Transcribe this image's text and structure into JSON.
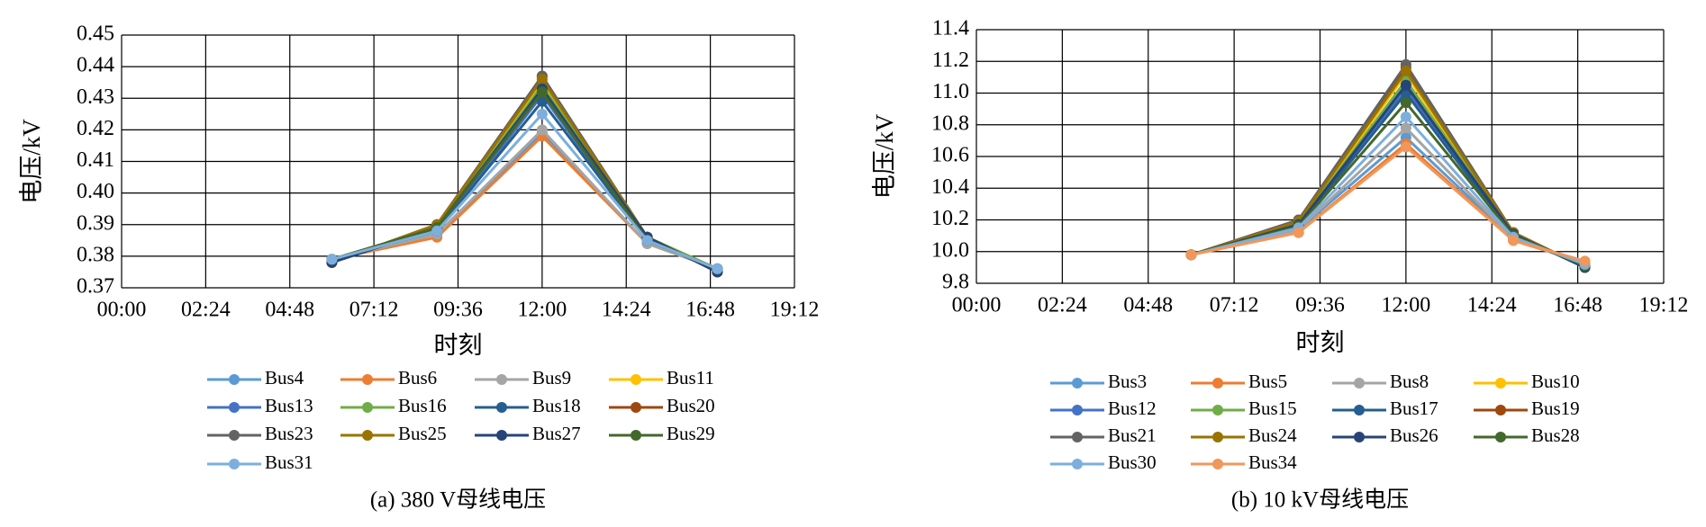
{
  "chart_data": [
    {
      "type": "line",
      "caption": "(a) 380 V母线电压",
      "x_label": "时刻",
      "y_label": "电压/kV",
      "grid": true,
      "x": [
        6,
        9,
        12,
        15,
        17
      ],
      "xlim": [
        0,
        19.2
      ],
      "xticks": [
        {
          "value": 0,
          "label": "00:00"
        },
        {
          "value": 2.4,
          "label": "02:24"
        },
        {
          "value": 4.8,
          "label": "04:48"
        },
        {
          "value": 7.2,
          "label": "07:12"
        },
        {
          "value": 9.6,
          "label": "09:36"
        },
        {
          "value": 12,
          "label": "12:00"
        },
        {
          "value": 14.4,
          "label": "14:24"
        },
        {
          "value": 16.8,
          "label": "16:48"
        },
        {
          "value": 19.2,
          "label": "19:12"
        }
      ],
      "ylim": [
        0.37,
        0.45
      ],
      "yticks": [
        0.37,
        0.38,
        0.39,
        {
          "value": 0.4,
          "label": "0.40"
        },
        0.41,
        0.42,
        0.43,
        0.44,
        0.45
      ],
      "series": [
        {
          "name": "Bus4",
          "color": "#5b9bd5",
          "values": [
            0.379,
            0.387,
            0.419,
            0.384,
            0.376
          ]
        },
        {
          "name": "Bus6",
          "color": "#ed7d31",
          "values": [
            0.379,
            0.386,
            0.418,
            0.384,
            0.376
          ]
        },
        {
          "name": "Bus9",
          "color": "#a5a5a5",
          "values": [
            0.379,
            0.387,
            0.42,
            0.384,
            0.376
          ]
        },
        {
          "name": "Bus11",
          "color": "#ffc000",
          "values": [
            0.379,
            0.389,
            0.435,
            0.386,
            0.376
          ]
        },
        {
          "name": "Bus13",
          "color": "#4472c4",
          "values": [
            0.379,
            0.388,
            0.431,
            0.385,
            0.376
          ]
        },
        {
          "name": "Bus16",
          "color": "#70ad47",
          "values": [
            0.379,
            0.389,
            0.434,
            0.386,
            0.376
          ]
        },
        {
          "name": "Bus18",
          "color": "#255e91",
          "values": [
            0.379,
            0.388,
            0.429,
            0.385,
            0.376
          ]
        },
        {
          "name": "Bus20",
          "color": "#9e480e",
          "values": [
            0.378,
            0.39,
            0.437,
            0.386,
            0.375
          ]
        },
        {
          "name": "Bus23",
          "color": "#636363",
          "values": [
            0.378,
            0.39,
            0.437,
            0.386,
            0.375
          ]
        },
        {
          "name": "Bus25",
          "color": "#997300",
          "values": [
            0.378,
            0.39,
            0.436,
            0.386,
            0.375
          ]
        },
        {
          "name": "Bus27",
          "color": "#264478",
          "values": [
            0.378,
            0.389,
            0.433,
            0.386,
            0.375
          ]
        },
        {
          "name": "Bus29",
          "color": "#43682b",
          "values": [
            0.379,
            0.389,
            0.432,
            0.385,
            0.376
          ]
        },
        {
          "name": "Bus31",
          "color": "#7cafdd",
          "values": [
            0.379,
            0.388,
            0.425,
            0.385,
            0.376
          ]
        }
      ]
    },
    {
      "type": "line",
      "caption": "(b) 10 kV母线电压",
      "x_label": "时刻",
      "y_label": "电压/kV",
      "grid": true,
      "x": [
        6,
        9,
        12,
        15,
        17
      ],
      "xlim": [
        0,
        19.2
      ],
      "xticks": [
        {
          "value": 0,
          "label": "00:00"
        },
        {
          "value": 2.4,
          "label": "02:24"
        },
        {
          "value": 4.8,
          "label": "04:48"
        },
        {
          "value": 7.2,
          "label": "07:12"
        },
        {
          "value": 9.6,
          "label": "09:36"
        },
        {
          "value": 12,
          "label": "12:00"
        },
        {
          "value": 14.4,
          "label": "14:24"
        },
        {
          "value": 16.8,
          "label": "16:48"
        },
        {
          "value": 19.2,
          "label": "19:12"
        }
      ],
      "ylim": [
        9.8,
        11.4
      ],
      "yticks": [
        9.8,
        {
          "value": 10,
          "label": "10.0"
        },
        10.2,
        10.4,
        10.6,
        10.8,
        {
          "value": 11,
          "label": "11.0"
        },
        11.2,
        11.4
      ],
      "series": [
        {
          "name": "Bus3",
          "color": "#5b9bd5",
          "values": [
            9.98,
            10.14,
            10.72,
            10.08,
            9.92
          ]
        },
        {
          "name": "Bus5",
          "color": "#ed7d31",
          "values": [
            9.98,
            10.12,
            10.68,
            10.07,
            9.93
          ]
        },
        {
          "name": "Bus8",
          "color": "#a5a5a5",
          "values": [
            9.98,
            10.14,
            10.78,
            10.08,
            9.92
          ]
        },
        {
          "name": "Bus10",
          "color": "#ffc000",
          "values": [
            9.98,
            10.18,
            11.12,
            10.11,
            9.9
          ]
        },
        {
          "name": "Bus12",
          "color": "#4472c4",
          "values": [
            9.98,
            10.17,
            11.02,
            10.1,
            9.91
          ]
        },
        {
          "name": "Bus15",
          "color": "#70ad47",
          "values": [
            9.98,
            10.17,
            11.08,
            10.11,
            9.9
          ]
        },
        {
          "name": "Bus17",
          "color": "#255e91",
          "values": [
            9.98,
            10.16,
            11.0,
            10.1,
            9.91
          ]
        },
        {
          "name": "Bus19",
          "color": "#9e480e",
          "values": [
            9.98,
            10.19,
            11.16,
            10.12,
            9.9
          ]
        },
        {
          "name": "Bus21",
          "color": "#636363",
          "values": [
            9.98,
            10.2,
            11.18,
            10.12,
            9.9
          ]
        },
        {
          "name": "Bus24",
          "color": "#997300",
          "values": [
            9.98,
            10.19,
            11.14,
            10.12,
            9.9
          ]
        },
        {
          "name": "Bus26",
          "color": "#264478",
          "values": [
            9.98,
            10.17,
            11.05,
            10.11,
            9.9
          ]
        },
        {
          "name": "Bus28",
          "color": "#43682b",
          "values": [
            9.98,
            10.16,
            10.94,
            10.1,
            9.91
          ]
        },
        {
          "name": "Bus30",
          "color": "#7cafdd",
          "values": [
            9.98,
            10.15,
            10.85,
            10.09,
            9.92
          ]
        },
        {
          "name": "Bus34",
          "color": "#f1975a",
          "values": [
            9.98,
            10.12,
            10.66,
            10.07,
            9.94
          ]
        }
      ]
    }
  ]
}
